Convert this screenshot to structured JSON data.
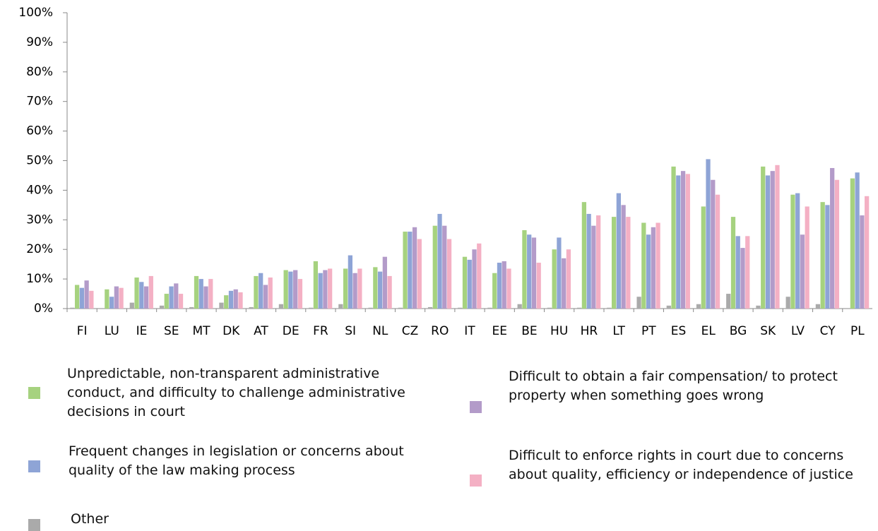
{
  "chart_data": {
    "type": "bar",
    "categories": [
      "FI",
      "LU",
      "IE",
      "SE",
      "MT",
      "DK",
      "AT",
      "DE",
      "FR",
      "SI",
      "NL",
      "CZ",
      "RO",
      "IT",
      "EE",
      "BE",
      "HU",
      "HR",
      "LT",
      "PT",
      "ES",
      "EL",
      "BG",
      "SK",
      "LV",
      "CY",
      "PL"
    ],
    "series": [
      {
        "name": "Other",
        "color": "#aaaaaa",
        "values": [
          0.3,
          0,
          2,
          1,
          0.5,
          2,
          0.5,
          1.5,
          0.3,
          1.5,
          0.3,
          0.3,
          0.5,
          0.3,
          0.3,
          1.5,
          0.3,
          0.3,
          0.3,
          4,
          1,
          1.5,
          5,
          1,
          4,
          1.5,
          0
        ]
      },
      {
        "name": "Unpredictable, non-transparent administrative conduct, and difficulty to challenge administrative decisions in court",
        "color": "#a6d27f",
        "values": [
          8,
          6.5,
          10.5,
          5,
          11,
          4.5,
          11,
          13,
          16,
          13.5,
          14,
          26,
          28,
          17.5,
          12,
          26.5,
          20,
          36,
          31,
          29,
          48,
          34.5,
          31,
          48,
          38.5,
          36,
          44
        ]
      },
      {
        "name": "Frequent changes in legislation or concerns about quality of the law making process",
        "color": "#8ea4d6",
        "values": [
          7,
          4,
          9,
          7.5,
          10,
          6,
          12,
          12.5,
          12,
          18,
          12.5,
          26,
          32,
          16.5,
          15.5,
          25,
          24,
          32,
          39,
          25,
          45,
          50.5,
          24.5,
          45,
          39,
          35,
          46
        ]
      },
      {
        "name": "Difficult to obtain a fair compensation/ to protect property when something goes wrong",
        "color": "#b39bc9",
        "values": [
          9.5,
          7.5,
          7.5,
          8.5,
          7.5,
          6.5,
          8,
          13,
          13,
          12,
          17.5,
          27.5,
          28,
          20,
          16,
          24,
          17,
          28,
          35,
          27.5,
          46.5,
          43.5,
          20.5,
          46.5,
          25,
          47.5,
          31.5
        ]
      },
      {
        "name": "Difficult to enforce rights in court due to concerns about quality, efficiency or independence of justice",
        "color": "#f4b0c4",
        "values": [
          6,
          7,
          11,
          5,
          10,
          5.5,
          10.5,
          10,
          13.5,
          13.5,
          11,
          23.5,
          23.5,
          22,
          13.5,
          15.5,
          20,
          31.5,
          31,
          29,
          45.5,
          38.5,
          24.5,
          48.5,
          34.5,
          43.5,
          38
        ]
      }
    ],
    "ylim": [
      0,
      100
    ],
    "yticks": [
      {
        "value": 0,
        "label": "0%"
      },
      {
        "value": 10,
        "label": "10%"
      },
      {
        "value": 20,
        "label": "20%"
      },
      {
        "value": 30,
        "label": "30%"
      },
      {
        "value": 40,
        "label": "40%"
      },
      {
        "value": 50,
        "label": "50%"
      },
      {
        "value": 60,
        "label": "60%"
      },
      {
        "value": 70,
        "label": "70%"
      },
      {
        "value": 80,
        "label": "80%"
      },
      {
        "value": 90,
        "label": "90%"
      },
      {
        "value": 100,
        "label": "100%"
      }
    ],
    "grid": false
  }
}
